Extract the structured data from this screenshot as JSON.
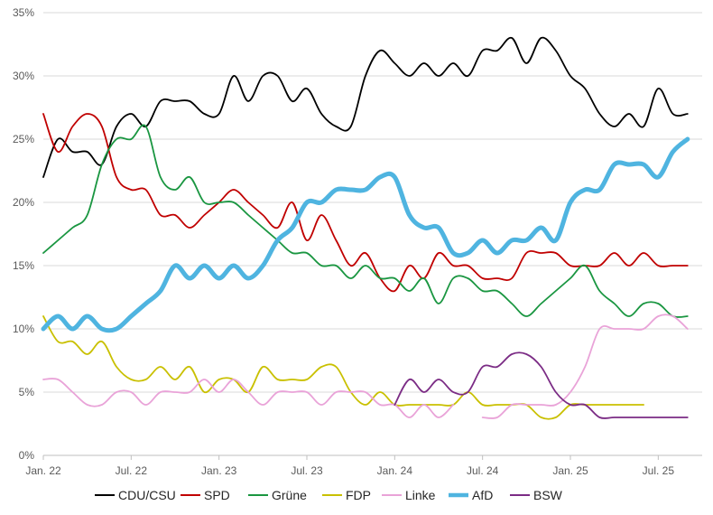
{
  "chart_data": {
    "type": "line",
    "title": "",
    "xlabel": "",
    "ylabel": "",
    "x_unit": "month",
    "x_ticks": [
      {
        "label": "Jan. 22",
        "x": "2022-01"
      },
      {
        "label": "Jul. 22",
        "x": "2022-07"
      },
      {
        "label": "Jan. 23",
        "x": "2023-01"
      },
      {
        "label": "Jul. 23",
        "x": "2023-07"
      },
      {
        "label": "Jan. 24",
        "x": "2024-01"
      },
      {
        "label": "Jul. 24",
        "x": "2024-07"
      },
      {
        "label": "Jan. 25",
        "x": "2025-01"
      },
      {
        "label": "Jul. 25",
        "x": "2025-07"
      }
    ],
    "xlim": [
      "2022-01",
      "2025-10"
    ],
    "y_ticks": [
      "0%",
      "5%",
      "10%",
      "15%",
      "20%",
      "25%",
      "30%",
      "35%"
    ],
    "ylim": [
      0,
      35
    ],
    "grid": "horizontal",
    "legend": "bottom",
    "series": [
      {
        "name": "CDU/CSU",
        "color": "#000000",
        "width": 1.8,
        "points": [
          [
            "2022-01",
            22
          ],
          [
            "2022-02",
            25
          ],
          [
            "2022-03",
            24
          ],
          [
            "2022-04",
            24
          ],
          [
            "2022-05",
            23
          ],
          [
            "2022-06",
            26
          ],
          [
            "2022-07",
            27
          ],
          [
            "2022-08",
            26
          ],
          [
            "2022-09",
            28
          ],
          [
            "2022-10",
            28
          ],
          [
            "2022-11",
            28
          ],
          [
            "2022-12",
            27
          ],
          [
            "2023-01",
            27
          ],
          [
            "2023-02",
            30
          ],
          [
            "2023-03",
            28
          ],
          [
            "2023-04",
            30
          ],
          [
            "2023-05",
            30
          ],
          [
            "2023-06",
            28
          ],
          [
            "2023-07",
            29
          ],
          [
            "2023-08",
            27
          ],
          [
            "2023-09",
            26
          ],
          [
            "2023-10",
            26
          ],
          [
            "2023-11",
            30
          ],
          [
            "2023-12",
            32
          ],
          [
            "2024-01",
            31
          ],
          [
            "2024-02",
            30
          ],
          [
            "2024-03",
            31
          ],
          [
            "2024-04",
            30
          ],
          [
            "2024-05",
            31
          ],
          [
            "2024-06",
            30
          ],
          [
            "2024-07",
            32
          ],
          [
            "2024-08",
            32
          ],
          [
            "2024-09",
            33
          ],
          [
            "2024-10",
            31
          ],
          [
            "2024-11",
            33
          ],
          [
            "2024-12",
            32
          ],
          [
            "2025-01",
            30
          ],
          [
            "2025-02",
            29
          ],
          [
            "2025-03",
            27
          ],
          [
            "2025-04",
            26
          ],
          [
            "2025-05",
            27
          ],
          [
            "2025-06",
            26
          ],
          [
            "2025-07",
            29
          ],
          [
            "2025-08",
            27
          ],
          [
            "2025-09",
            27
          ]
        ]
      },
      {
        "name": "SPD",
        "color": "#c00000",
        "width": 1.8,
        "points": [
          [
            "2022-01",
            27
          ],
          [
            "2022-02",
            24
          ],
          [
            "2022-03",
            26
          ],
          [
            "2022-04",
            27
          ],
          [
            "2022-05",
            26
          ],
          [
            "2022-06",
            22
          ],
          [
            "2022-07",
            21
          ],
          [
            "2022-08",
            21
          ],
          [
            "2022-09",
            19
          ],
          [
            "2022-10",
            19
          ],
          [
            "2022-11",
            18
          ],
          [
            "2022-12",
            19
          ],
          [
            "2023-01",
            20
          ],
          [
            "2023-02",
            21
          ],
          [
            "2023-03",
            20
          ],
          [
            "2023-04",
            19
          ],
          [
            "2023-05",
            18
          ],
          [
            "2023-06",
            20
          ],
          [
            "2023-07",
            17
          ],
          [
            "2023-08",
            19
          ],
          [
            "2023-09",
            17
          ],
          [
            "2023-10",
            15
          ],
          [
            "2023-11",
            16
          ],
          [
            "2023-12",
            14
          ],
          [
            "2024-01",
            13
          ],
          [
            "2024-02",
            15
          ],
          [
            "2024-03",
            14
          ],
          [
            "2024-04",
            16
          ],
          [
            "2024-05",
            15
          ],
          [
            "2024-06",
            15
          ],
          [
            "2024-07",
            14
          ],
          [
            "2024-08",
            14
          ],
          [
            "2024-09",
            14
          ],
          [
            "2024-10",
            16
          ],
          [
            "2024-11",
            16
          ],
          [
            "2024-12",
            16
          ],
          [
            "2025-01",
            15
          ],
          [
            "2025-02",
            15
          ],
          [
            "2025-03",
            15
          ],
          [
            "2025-04",
            16
          ],
          [
            "2025-05",
            15
          ],
          [
            "2025-06",
            16
          ],
          [
            "2025-07",
            15
          ],
          [
            "2025-08",
            15
          ],
          [
            "2025-09",
            15
          ]
        ]
      },
      {
        "name": "Grüne",
        "color": "#1a9641",
        "width": 1.8,
        "points": [
          [
            "2022-01",
            16
          ],
          [
            "2022-02",
            17
          ],
          [
            "2022-03",
            18
          ],
          [
            "2022-04",
            19
          ],
          [
            "2022-05",
            23
          ],
          [
            "2022-06",
            25
          ],
          [
            "2022-07",
            25
          ],
          [
            "2022-08",
            26
          ],
          [
            "2022-09",
            22
          ],
          [
            "2022-10",
            21
          ],
          [
            "2022-11",
            22
          ],
          [
            "2022-12",
            20
          ],
          [
            "2023-01",
            20
          ],
          [
            "2023-02",
            20
          ],
          [
            "2023-03",
            19
          ],
          [
            "2023-04",
            18
          ],
          [
            "2023-05",
            17
          ],
          [
            "2023-06",
            16
          ],
          [
            "2023-07",
            16
          ],
          [
            "2023-08",
            15
          ],
          [
            "2023-09",
            15
          ],
          [
            "2023-10",
            14
          ],
          [
            "2023-11",
            15
          ],
          [
            "2023-12",
            14
          ],
          [
            "2024-01",
            14
          ],
          [
            "2024-02",
            13
          ],
          [
            "2024-03",
            14
          ],
          [
            "2024-04",
            12
          ],
          [
            "2024-05",
            14
          ],
          [
            "2024-06",
            14
          ],
          [
            "2024-07",
            13
          ],
          [
            "2024-08",
            13
          ],
          [
            "2024-09",
            12
          ],
          [
            "2024-10",
            11
          ],
          [
            "2024-11",
            12
          ],
          [
            "2024-12",
            13
          ],
          [
            "2025-01",
            14
          ],
          [
            "2025-02",
            15
          ],
          [
            "2025-03",
            13
          ],
          [
            "2025-04",
            12
          ],
          [
            "2025-05",
            11
          ],
          [
            "2025-06",
            12
          ],
          [
            "2025-07",
            12
          ],
          [
            "2025-08",
            11
          ],
          [
            "2025-09",
            11
          ]
        ]
      },
      {
        "name": "FDP",
        "color": "#c9c000",
        "width": 1.8,
        "points": [
          [
            "2022-01",
            11
          ],
          [
            "2022-02",
            9
          ],
          [
            "2022-03",
            9
          ],
          [
            "2022-04",
            8
          ],
          [
            "2022-05",
            9
          ],
          [
            "2022-06",
            7
          ],
          [
            "2022-07",
            6
          ],
          [
            "2022-08",
            6
          ],
          [
            "2022-09",
            7
          ],
          [
            "2022-10",
            6
          ],
          [
            "2022-11",
            7
          ],
          [
            "2022-12",
            5
          ],
          [
            "2023-01",
            6
          ],
          [
            "2023-02",
            6
          ],
          [
            "2023-03",
            5
          ],
          [
            "2023-04",
            7
          ],
          [
            "2023-05",
            6
          ],
          [
            "2023-06",
            6
          ],
          [
            "2023-07",
            6
          ],
          [
            "2023-08",
            7
          ],
          [
            "2023-09",
            7
          ],
          [
            "2023-10",
            5
          ],
          [
            "2023-11",
            4
          ],
          [
            "2023-12",
            5
          ],
          [
            "2024-01",
            4
          ],
          [
            "2024-02",
            4
          ],
          [
            "2024-03",
            4
          ],
          [
            "2024-04",
            4
          ],
          [
            "2024-05",
            4
          ],
          [
            "2024-06",
            5
          ],
          [
            "2024-07",
            4
          ],
          [
            "2024-08",
            4
          ],
          [
            "2024-09",
            4
          ],
          [
            "2024-10",
            4
          ],
          [
            "2024-11",
            3
          ],
          [
            "2024-12",
            3
          ],
          [
            "2025-01",
            4
          ],
          [
            "2025-02",
            4
          ],
          [
            "2025-03",
            4
          ],
          [
            "2025-04",
            4
          ],
          [
            "2025-05",
            4
          ],
          [
            "2025-06",
            4
          ]
        ]
      },
      {
        "name": "Linke",
        "color": "#e9a3d8",
        "width": 1.8,
        "points": [
          [
            "2022-01",
            6
          ],
          [
            "2022-02",
            6
          ],
          [
            "2022-03",
            5
          ],
          [
            "2022-04",
            4
          ],
          [
            "2022-05",
            4
          ],
          [
            "2022-06",
            5
          ],
          [
            "2022-07",
            5
          ],
          [
            "2022-08",
            4
          ],
          [
            "2022-09",
            5
          ],
          [
            "2022-10",
            5
          ],
          [
            "2022-11",
            5
          ],
          [
            "2022-12",
            6
          ],
          [
            "2023-01",
            5
          ],
          [
            "2023-02",
            6
          ],
          [
            "2023-03",
            5
          ],
          [
            "2023-04",
            4
          ],
          [
            "2023-05",
            5
          ],
          [
            "2023-06",
            5
          ],
          [
            "2023-07",
            5
          ],
          [
            "2023-08",
            4
          ],
          [
            "2023-09",
            5
          ],
          [
            "2023-10",
            5
          ],
          [
            "2023-11",
            5
          ],
          [
            "2023-12",
            4
          ],
          [
            "2024-01",
            4
          ],
          [
            "2024-02",
            3
          ],
          [
            "2024-03",
            4
          ],
          [
            "2024-04",
            3
          ],
          [
            "2024-05",
            4
          ],
          [
            "2024-06",
            null
          ],
          [
            "2024-07",
            3
          ],
          [
            "2024-08",
            3
          ],
          [
            "2024-09",
            4
          ],
          [
            "2024-10",
            4
          ],
          [
            "2024-11",
            4
          ],
          [
            "2024-12",
            4
          ],
          [
            "2025-01",
            5
          ],
          [
            "2025-02",
            7
          ],
          [
            "2025-03",
            10
          ],
          [
            "2025-04",
            10
          ],
          [
            "2025-05",
            10
          ],
          [
            "2025-06",
            10
          ],
          [
            "2025-07",
            11
          ],
          [
            "2025-08",
            11
          ],
          [
            "2025-09",
            10
          ]
        ]
      },
      {
        "name": "AfD",
        "color": "#4fb4e0",
        "width": 5,
        "points": [
          [
            "2022-01",
            10
          ],
          [
            "2022-02",
            11
          ],
          [
            "2022-03",
            10
          ],
          [
            "2022-04",
            11
          ],
          [
            "2022-05",
            10
          ],
          [
            "2022-06",
            10
          ],
          [
            "2022-07",
            11
          ],
          [
            "2022-08",
            12
          ],
          [
            "2022-09",
            13
          ],
          [
            "2022-10",
            15
          ],
          [
            "2022-11",
            14
          ],
          [
            "2022-12",
            15
          ],
          [
            "2023-01",
            14
          ],
          [
            "2023-02",
            15
          ],
          [
            "2023-03",
            14
          ],
          [
            "2023-04",
            15
          ],
          [
            "2023-05",
            17
          ],
          [
            "2023-06",
            18
          ],
          [
            "2023-07",
            20
          ],
          [
            "2023-08",
            20
          ],
          [
            "2023-09",
            21
          ],
          [
            "2023-10",
            21
          ],
          [
            "2023-11",
            21
          ],
          [
            "2023-12",
            22
          ],
          [
            "2024-01",
            22
          ],
          [
            "2024-02",
            19
          ],
          [
            "2024-03",
            18
          ],
          [
            "2024-04",
            18
          ],
          [
            "2024-05",
            16
          ],
          [
            "2024-06",
            16
          ],
          [
            "2024-07",
            17
          ],
          [
            "2024-08",
            16
          ],
          [
            "2024-09",
            17
          ],
          [
            "2024-10",
            17
          ],
          [
            "2024-11",
            18
          ],
          [
            "2024-12",
            17
          ],
          [
            "2025-01",
            20
          ],
          [
            "2025-02",
            21
          ],
          [
            "2025-03",
            21
          ],
          [
            "2025-04",
            23
          ],
          [
            "2025-05",
            23
          ],
          [
            "2025-06",
            23
          ],
          [
            "2025-07",
            22
          ],
          [
            "2025-08",
            24
          ],
          [
            "2025-09",
            25
          ]
        ]
      },
      {
        "name": "BSW",
        "color": "#7b2c85",
        "width": 1.8,
        "points": [
          [
            "2024-01",
            4
          ],
          [
            "2024-02",
            6
          ],
          [
            "2024-03",
            5
          ],
          [
            "2024-04",
            6
          ],
          [
            "2024-05",
            5
          ],
          [
            "2024-06",
            5
          ],
          [
            "2024-07",
            7
          ],
          [
            "2024-08",
            7
          ],
          [
            "2024-09",
            8
          ],
          [
            "2024-10",
            8
          ],
          [
            "2024-11",
            7
          ],
          [
            "2024-12",
            5
          ],
          [
            "2025-01",
            4
          ],
          [
            "2025-02",
            4
          ],
          [
            "2025-03",
            3
          ],
          [
            "2025-04",
            3
          ],
          [
            "2025-05",
            3
          ],
          [
            "2025-06",
            3
          ],
          [
            "2025-07",
            3
          ],
          [
            "2025-08",
            3
          ],
          [
            "2025-09",
            3
          ]
        ]
      }
    ]
  }
}
